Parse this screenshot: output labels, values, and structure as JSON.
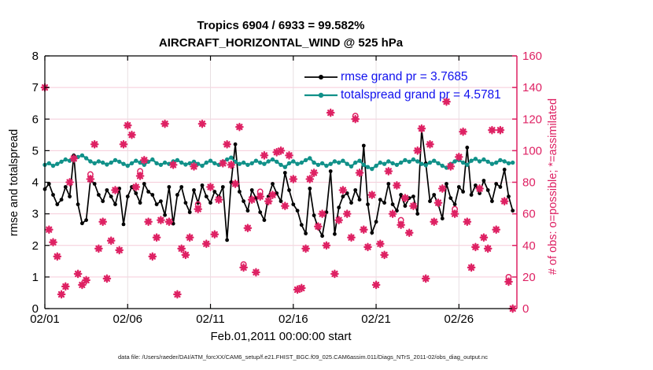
{
  "chart_data": {
    "type": "line",
    "title_line1": "Tropics 6904 / 6933 = 99.582%",
    "title_line2": "AIRCRAFT_HORIZONTAL_WIND @ 525 hPa",
    "xlabel": "Feb.01,2011 00:00:00 start",
    "ylabel_left": "rmse and totalspread",
    "ylabel_right": "# of obs: o=possible; *=assimilated",
    "datafile": "data file: /Users/raeder/DAI/ATM_forcXX/CAM6_setup/f.e21.FHIST_BGC.f09_025.CAM6assim.011/Diags_NTrS_2011-02/obs_diag_output.nc",
    "legend": [
      {
        "name": "rmse",
        "label": "rmse grand pr = 3.7685"
      },
      {
        "name": "totalspread",
        "label": "totalspread grand pr = 4.5781"
      }
    ],
    "colors": {
      "rmse": "#000000",
      "totalspread": "#119189",
      "obs": "#DE2163",
      "legend_text": "#1111EE",
      "grid_h": "#F6CBD9",
      "grid_v": "#E8DfE2",
      "axis_left": "#000000",
      "axis_right": "#DE2163"
    },
    "axes": {
      "x": {
        "range_days": [
          0,
          28.5
        ],
        "ticks": [
          {
            "d": 0,
            "label": "02/01"
          },
          {
            "d": 5,
            "label": "02/06"
          },
          {
            "d": 10,
            "label": "02/11"
          },
          {
            "d": 15,
            "label": "02/16"
          },
          {
            "d": 20,
            "label": "02/21"
          },
          {
            "d": 25,
            "label": "02/26"
          }
        ]
      },
      "y_left": {
        "range": [
          0,
          8
        ],
        "ticks": [
          0,
          1,
          2,
          3,
          4,
          5,
          6,
          7,
          8
        ]
      },
      "y_right": {
        "range": [
          0,
          160
        ],
        "ticks": [
          0,
          20,
          40,
          60,
          80,
          100,
          120,
          140,
          160
        ]
      }
    },
    "time_step_days": 0.25,
    "rmse": [
      3.78,
      3.95,
      3.6,
      3.3,
      3.45,
      3.85,
      3.55,
      4.85,
      3.3,
      2.7,
      2.8,
      4.05,
      3.95,
      3.6,
      3.4,
      3.75,
      3.55,
      3.3,
      3.8,
      2.67,
      3.55,
      3.85,
      3.65,
      3.35,
      3.95,
      3.7,
      3.6,
      3.3,
      3.4,
      2.96,
      3.85,
      2.69,
      3.6,
      3.85,
      3.35,
      3.05,
      3.75,
      3.35,
      3.9,
      3.55,
      3.35,
      3.7,
      3.55,
      3.85,
      2.17,
      4.0,
      5.2,
      3.7,
      3.4,
      3.1,
      3.75,
      3.5,
      3.05,
      2.8,
      3.55,
      3.95,
      3.65,
      3.4,
      4.3,
      3.75,
      3.3,
      3.1,
      2.65,
      2.38,
      3.8,
      2.95,
      2.55,
      2.3,
      3.05,
      4.35,
      2.36,
      3.2,
      3.55,
      3.65,
      3.35,
      3.75,
      3.45,
      5.16,
      3.3,
      2.4,
      2.75,
      3.45,
      3.35,
      3.95,
      3.3,
      3.1,
      3.6,
      3.25,
      3.5,
      3.55,
      3.0,
      5.66,
      4.6,
      3.4,
      3.6,
      3.3,
      2.85,
      3.95,
      3.5,
      3.3,
      3.85,
      3.7,
      5.1,
      3.6,
      3.9,
      3.65,
      4.05,
      3.75,
      3.4,
      3.95,
      3.85,
      4.4,
      3.55,
      3.1
    ],
    "totalspread": [
      4.55,
      4.6,
      4.52,
      4.58,
      4.65,
      4.72,
      4.68,
      4.78,
      4.8,
      4.85,
      4.76,
      4.66,
      4.6,
      4.66,
      4.62,
      4.56,
      4.62,
      4.7,
      4.65,
      4.58,
      4.52,
      4.6,
      4.68,
      4.62,
      4.55,
      4.65,
      4.72,
      4.6,
      4.55,
      4.62,
      4.58,
      4.66,
      4.7,
      4.62,
      4.56,
      4.6,
      4.65,
      4.58,
      4.52,
      4.62,
      4.68,
      4.6,
      4.55,
      4.65,
      4.72,
      4.78,
      4.65,
      4.58,
      4.62,
      4.55,
      4.6,
      4.68,
      4.62,
      4.58,
      4.66,
      4.72,
      4.65,
      4.55,
      4.48,
      4.6,
      4.66,
      4.58,
      4.62,
      4.7,
      4.76,
      4.62,
      4.55,
      4.6,
      4.52,
      4.58,
      4.66,
      4.62,
      4.68,
      4.58,
      4.5,
      4.62,
      4.68,
      4.55,
      4.48,
      4.42,
      4.52,
      4.62,
      4.58,
      4.66,
      4.6,
      4.55,
      4.62,
      4.7,
      4.65,
      4.72,
      4.66,
      4.58,
      4.54,
      4.62,
      4.68,
      4.6,
      4.52,
      4.46,
      4.58,
      4.66,
      4.7,
      4.62,
      4.55,
      4.68,
      4.74,
      4.66,
      4.72,
      4.65,
      4.58,
      4.62,
      4.7,
      4.66,
      4.6,
      4.62
    ],
    "obs_assimilated": [
      140,
      50,
      42,
      33,
      9,
      14,
      80,
      95,
      22,
      15,
      18,
      82,
      104,
      38,
      55,
      19,
      43,
      75,
      37,
      104,
      116,
      110,
      77,
      84,
      94,
      55,
      33,
      45,
      56,
      117,
      55,
      91,
      9,
      38,
      34,
      45,
      90,
      63,
      117,
      41,
      77,
      47,
      69,
      92,
      104,
      91,
      79,
      115,
      26,
      51,
      69,
      23,
      71,
      97,
      68,
      72,
      99,
      100,
      65,
      97,
      82,
      12,
      13,
      38,
      82,
      86,
      52,
      60,
      40,
      124,
      22,
      56,
      75,
      60,
      45,
      120,
      86,
      50,
      39,
      72,
      15,
      41,
      34,
      87,
      60,
      78,
      53,
      70,
      48,
      65,
      100,
      114,
      19,
      104,
      55,
      67,
      76,
      131,
      90,
      60,
      96,
      112,
      55,
      26,
      39,
      76,
      45,
      38,
      113,
      50,
      113,
      68,
      17,
      0
    ],
    "obs_possible_extra": [
      {
        "day": 2.75,
        "count": 85
      },
      {
        "day": 5.75,
        "count": 87
      },
      {
        "day": 9.25,
        "count": 66
      },
      {
        "day": 12.0,
        "count": 28
      },
      {
        "day": 13.0,
        "count": 74
      },
      {
        "day": 18.75,
        "count": 122
      },
      {
        "day": 21.5,
        "count": 56
      },
      {
        "day": 24.75,
        "count": 63
      },
      {
        "day": 28.0,
        "count": 20
      }
    ]
  }
}
